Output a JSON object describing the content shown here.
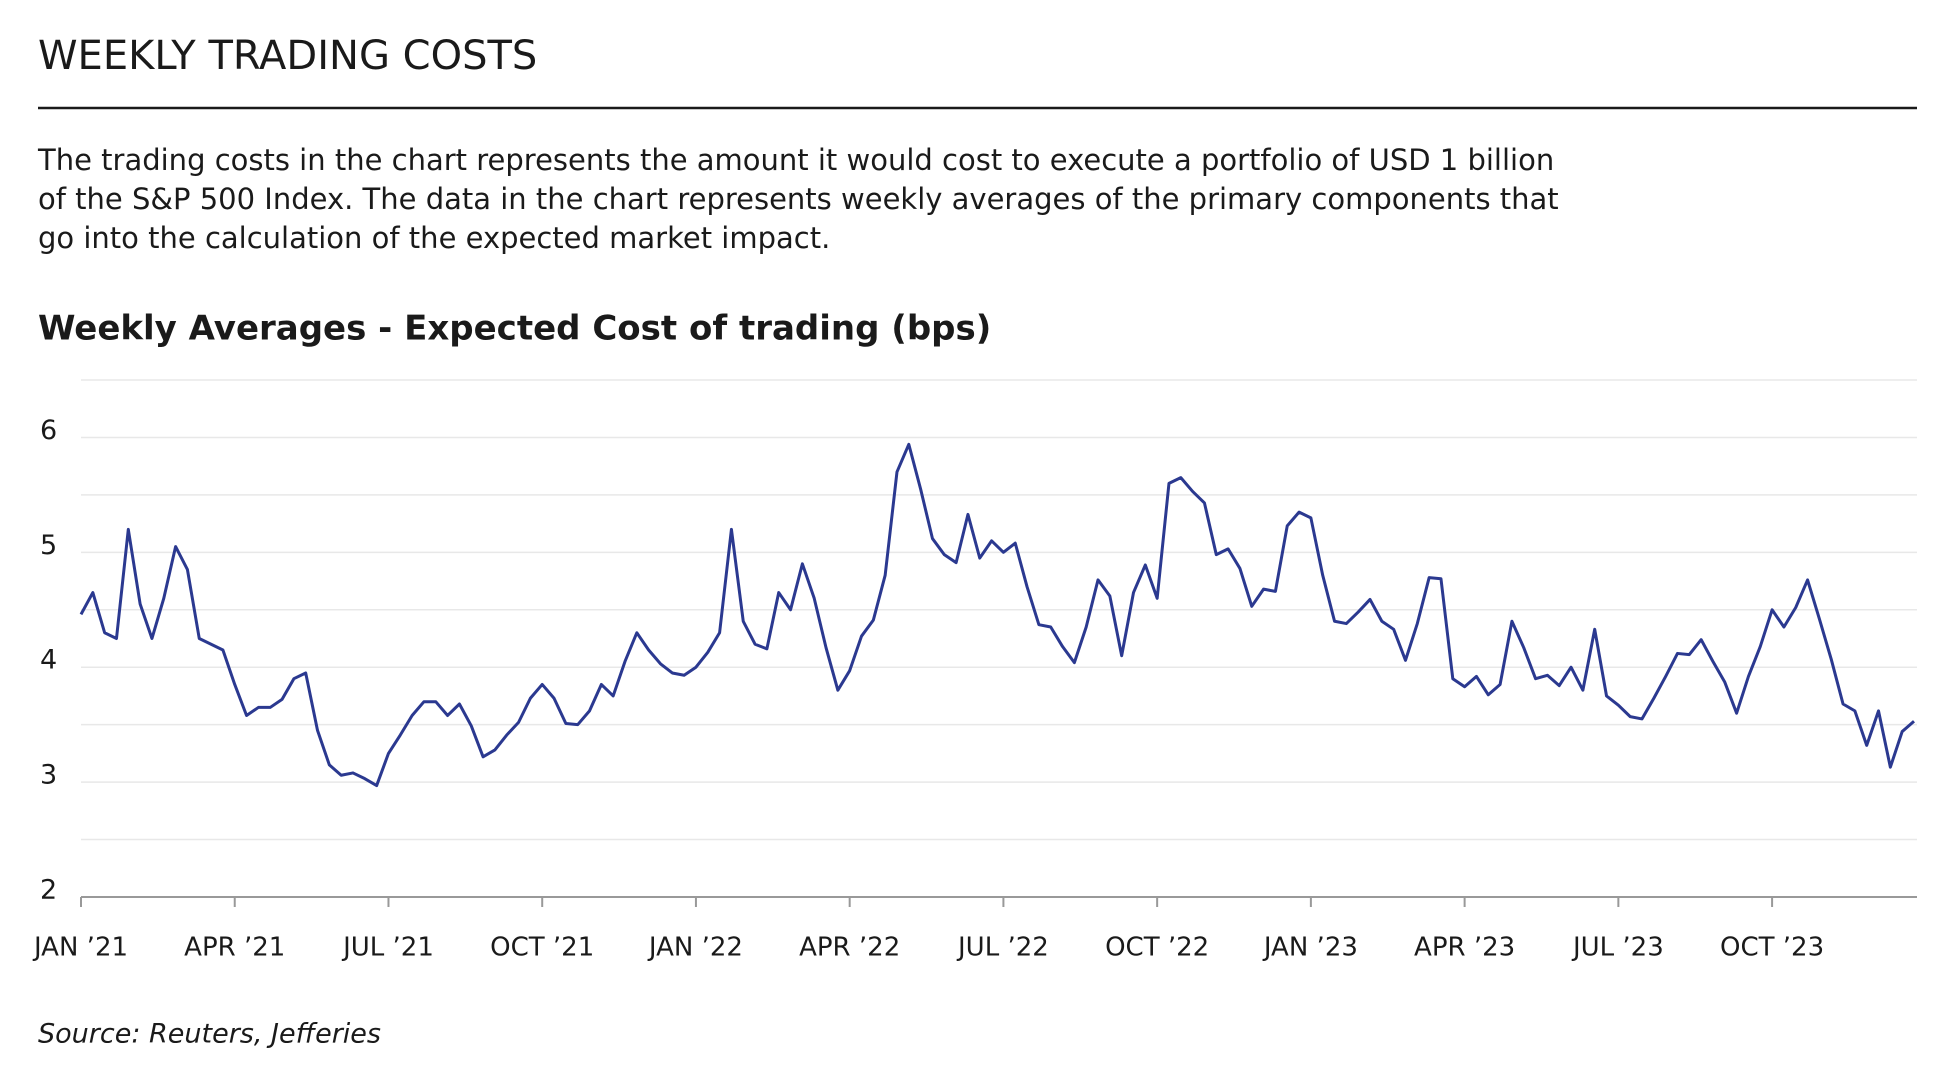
{
  "header": {
    "title": "WEEKLY TRADING COSTS",
    "description": [
      "The trading costs in the chart represents the amount it would cost to execute a portfolio of USD 1 billion",
      "of the S&P 500 Index. The data in the chart represents weekly averages of the primary components that",
      "go into the calculation of the expected market impact."
    ]
  },
  "chart_data": {
    "type": "line",
    "title": "Weekly Averages - Expected Cost of trading (bps)",
    "categories": [
      "JAN ’21",
      null,
      null,
      null,
      null,
      null,
      null,
      null,
      null,
      null,
      null,
      null,
      null,
      "APR ’21",
      null,
      null,
      null,
      null,
      null,
      null,
      null,
      null,
      null,
      null,
      null,
      null,
      "JUL ’21",
      null,
      null,
      null,
      null,
      null,
      null,
      null,
      null,
      null,
      null,
      null,
      null,
      "OCT ’21",
      null,
      null,
      null,
      null,
      null,
      null,
      null,
      null,
      null,
      null,
      null,
      null,
      "JAN ’22",
      null,
      null,
      null,
      null,
      null,
      null,
      null,
      null,
      null,
      null,
      null,
      null,
      "APR ’22",
      null,
      null,
      null,
      null,
      null,
      null,
      null,
      null,
      null,
      null,
      null,
      null,
      "JUL ’22",
      null,
      null,
      null,
      null,
      null,
      null,
      null,
      null,
      null,
      null,
      null,
      null,
      "OCT ’22",
      null,
      null,
      null,
      null,
      null,
      null,
      null,
      null,
      null,
      null,
      null,
      null,
      "JAN ’23",
      null,
      null,
      null,
      null,
      null,
      null,
      null,
      null,
      null,
      null,
      null,
      null,
      "APR ’23",
      null,
      null,
      null,
      null,
      null,
      null,
      null,
      null,
      null,
      null,
      null,
      null,
      "JUL ’23",
      null,
      null,
      null,
      null,
      null,
      null,
      null,
      null,
      null,
      null,
      null,
      null,
      "OCT ’23",
      null,
      null,
      null,
      null,
      null,
      null,
      null,
      null,
      null,
      null,
      null,
      null
    ],
    "values": [
      4.46,
      4.65,
      4.3,
      4.25,
      5.2,
      4.55,
      4.25,
      4.6,
      5.05,
      4.85,
      4.25,
      4.2,
      4.15,
      3.85,
      3.58,
      3.65,
      3.65,
      3.72,
      3.9,
      3.95,
      3.45,
      3.15,
      3.06,
      3.08,
      3.03,
      2.97,
      3.25,
      3.41,
      3.58,
      3.7,
      3.7,
      3.58,
      3.68,
      3.49,
      3.22,
      3.28,
      3.41,
      3.52,
      3.73,
      3.85,
      3.73,
      3.51,
      3.5,
      3.62,
      3.85,
      3.75,
      4.05,
      4.3,
      4.15,
      4.03,
      3.95,
      3.93,
      4.0,
      4.13,
      4.3,
      5.2,
      4.4,
      4.2,
      4.16,
      4.65,
      4.5,
      4.9,
      4.6,
      4.17,
      3.8,
      3.97,
      4.27,
      4.41,
      4.8,
      5.7,
      5.94,
      5.55,
      5.12,
      4.98,
      4.91,
      5.33,
      4.95,
      5.1,
      5.0,
      5.08,
      4.7,
      4.37,
      4.35,
      4.18,
      4.04,
      4.35,
      4.76,
      4.62,
      4.1,
      4.65,
      4.89,
      4.6,
      5.6,
      5.65,
      5.53,
      5.43,
      4.98,
      5.03,
      4.86,
      4.53,
      4.68,
      4.66,
      5.23,
      5.35,
      5.3,
      4.8,
      4.4,
      4.38,
      4.48,
      4.59,
      4.4,
      4.33,
      4.06,
      4.38,
      4.78,
      4.77,
      3.9,
      3.83,
      3.92,
      3.76,
      3.85,
      4.4,
      4.17,
      3.9,
      3.93,
      3.84,
      4.0,
      3.8,
      4.33,
      3.75,
      3.67,
      3.57,
      3.55,
      3.73,
      3.92,
      4.12,
      4.11,
      4.24,
      4.05,
      3.87,
      3.6,
      3.92,
      4.18,
      4.5,
      4.35,
      4.52,
      4.76,
      4.42,
      4.07,
      3.68,
      3.62,
      3.32,
      3.62,
      3.13,
      3.44,
      3.53
    ],
    "color": "#2b3990",
    "ylim": [
      2,
      6.5
    ],
    "yticks": [
      2,
      3,
      4,
      5,
      6
    ],
    "grid_lines": [
      2,
      2.5,
      3,
      3.5,
      4,
      4.5,
      5,
      5.5,
      6,
      6.5
    ]
  },
  "source": "Source: Reuters, Jefferies"
}
